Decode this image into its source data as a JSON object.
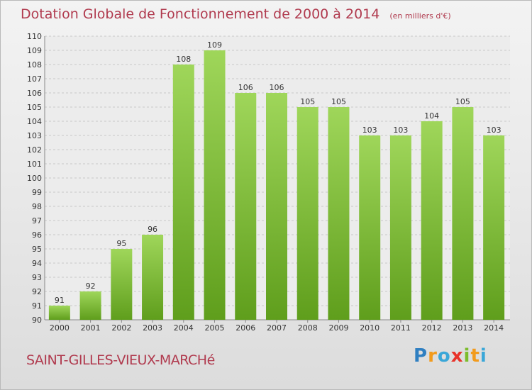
{
  "chart_data": {
    "type": "bar",
    "title": "Dotation Globale de Fonctionnement de 2000 à 2014",
    "subtitle": "(en milliers d'€)",
    "categories": [
      "2000",
      "2001",
      "2002",
      "2003",
      "2004",
      "2005",
      "2006",
      "2007",
      "2008",
      "2009",
      "2010",
      "2011",
      "2012",
      "2013",
      "2014"
    ],
    "values": [
      91,
      92,
      95,
      96,
      108,
      109,
      106,
      106,
      105,
      105,
      103,
      103,
      104,
      105,
      103
    ],
    "ylim": [
      90,
      110
    ],
    "yticks": [
      90,
      91,
      92,
      93,
      94,
      95,
      96,
      97,
      98,
      99,
      100,
      101,
      102,
      103,
      104,
      105,
      106,
      107,
      108,
      109,
      110
    ],
    "grid": true,
    "bar_color": "#7dc23a"
  },
  "location": "SAINT-GILLES-VIEUX-MARCHé",
  "logo": {
    "letters": [
      "P",
      "r",
      "o",
      "x",
      "i",
      "t",
      "i"
    ],
    "colors": [
      "#2f7fc1",
      "#f29b1d",
      "#3aa7d8",
      "#e8332a",
      "#7cbc2c",
      "#f29b1d",
      "#3aa7d8"
    ]
  }
}
